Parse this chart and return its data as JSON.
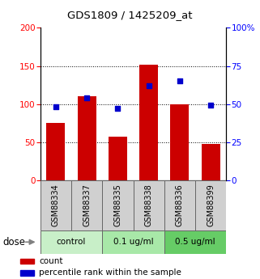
{
  "title": "GDS1809 / 1425209_at",
  "samples": [
    "GSM88334",
    "GSM88337",
    "GSM88335",
    "GSM88338",
    "GSM88336",
    "GSM88399"
  ],
  "counts": [
    75,
    110,
    57,
    152,
    100,
    47
  ],
  "percentiles": [
    48,
    54,
    47,
    62,
    65,
    49
  ],
  "groups": [
    {
      "label": "control",
      "samples": [
        0,
        1
      ],
      "color": "#c8efc8"
    },
    {
      "label": "0.1 ug/ml",
      "samples": [
        2,
        3
      ],
      "color": "#a8e8a8"
    },
    {
      "label": "0.5 ug/ml",
      "samples": [
        4,
        5
      ],
      "color": "#66cc66"
    }
  ],
  "left_ylim": [
    0,
    200
  ],
  "right_ylim": [
    0,
    100
  ],
  "left_yticks": [
    0,
    50,
    100,
    150,
    200
  ],
  "right_yticks": [
    0,
    25,
    50,
    75,
    100
  ],
  "right_yticklabels": [
    "0",
    "25",
    "50",
    "75",
    "100%"
  ],
  "bar_color": "#cc0000",
  "point_color": "#0000cc",
  "sample_box_color": "#d0d0d0",
  "dose_label": "dose",
  "legend_count": "count",
  "legend_percentile": "percentile rank within the sample"
}
